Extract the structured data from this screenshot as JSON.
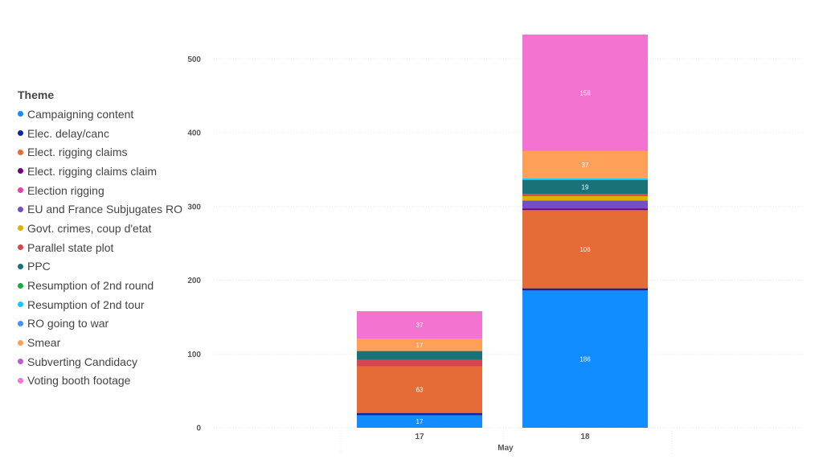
{
  "chart_data": {
    "type": "bar",
    "stacked": true,
    "categories": [
      "17",
      "18"
    ],
    "xlabel": "May",
    "ylabel": "",
    "ylim": [
      0,
      540
    ],
    "yticks": [
      0,
      100,
      200,
      300,
      400,
      500
    ],
    "grid": true,
    "legend_title": "Theme",
    "legend_position": "left",
    "series": [
      {
        "name": "Campaigning content",
        "color": "#118DFF",
        "values": [
          17,
          186
        ],
        "labels": [
          "17",
          "186"
        ]
      },
      {
        "name": "Elec. delay/canc",
        "color": "#12239E",
        "values": [
          3,
          3
        ],
        "labels": [
          "",
          ""
        ]
      },
      {
        "name": "Elect. rigging claims",
        "color": "#E66C37",
        "values": [
          63,
          106
        ],
        "labels": [
          "63",
          "106"
        ]
      },
      {
        "name": "Elect. rigging claims claim",
        "color": "#6B007B",
        "values": [
          0,
          2
        ],
        "labels": [
          "",
          ""
        ]
      },
      {
        "name": "Election rigging",
        "color": "#E044A7",
        "values": [
          0,
          0
        ],
        "labels": [
          "",
          ""
        ]
      },
      {
        "name": "EU and France Subjugates RO",
        "color": "#744EC2",
        "values": [
          0,
          11
        ],
        "labels": [
          "",
          ""
        ]
      },
      {
        "name": "Govt. crimes, coup d'etat",
        "color": "#D9B300",
        "values": [
          0,
          6
        ],
        "labels": [
          "",
          ""
        ]
      },
      {
        "name": "Parallel state plot",
        "color": "#D64550",
        "values": [
          9,
          3
        ],
        "labels": [
          "",
          ""
        ]
      },
      {
        "name": "PPC",
        "color": "#197278",
        "values": [
          12,
          19
        ],
        "labels": [
          "",
          "19"
        ]
      },
      {
        "name": "Resumption of 2nd round",
        "color": "#1AAB40",
        "values": [
          0,
          0
        ],
        "labels": [
          "",
          ""
        ]
      },
      {
        "name": "Resumption of 2nd tour",
        "color": "#15C6F4",
        "values": [
          0,
          2
        ],
        "labels": [
          "",
          ""
        ]
      },
      {
        "name": "RO going to war",
        "color": "#4092FF",
        "values": [
          0,
          0
        ],
        "labels": [
          "",
          ""
        ]
      },
      {
        "name": "Smear",
        "color": "#FFA058",
        "values": [
          17,
          37
        ],
        "labels": [
          "17",
          "37"
        ]
      },
      {
        "name": "Subverting Candidacy",
        "color": "#BE5DC9",
        "values": [
          0,
          0
        ],
        "labels": [
          "",
          ""
        ]
      },
      {
        "name": "Voting booth footage",
        "color": "#F472D0",
        "values": [
          37,
          158
        ],
        "labels": [
          "37",
          "158"
        ]
      }
    ]
  }
}
